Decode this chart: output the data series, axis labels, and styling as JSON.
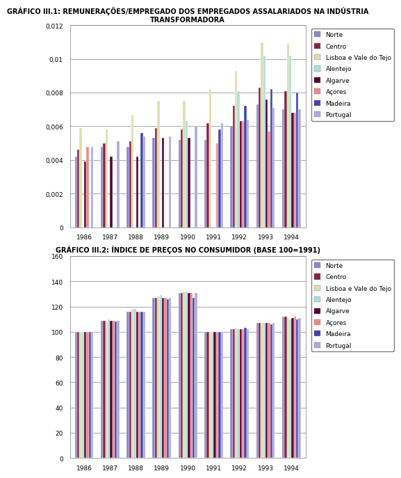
{
  "chart1": {
    "title": "GRÁFICO III.1: REMUNERAÇÕES/EMPREGADO DOS EMPREGADOS ASSALARIADOS NA INDÚSTRIA\nTRANSFORMADORA",
    "years": [
      1986,
      1987,
      1988,
      1989,
      1990,
      1991,
      1992,
      1993,
      1994
    ],
    "series": {
      "Norte": [
        0.0042,
        0.0048,
        0.0048,
        0.0053,
        0.0052,
        0.0052,
        0.006,
        0.0073,
        0.007
      ],
      "Centro": [
        0.0046,
        0.005,
        0.0051,
        0.0059,
        0.0058,
        0.0062,
        0.0072,
        0.0083,
        0.0081
      ],
      "Lisboa e Vale do Tejo": [
        0.0059,
        0.0058,
        0.0067,
        0.0075,
        0.0075,
        0.0082,
        0.0093,
        0.011,
        0.0109
      ],
      "Alentejo": [
        0.0,
        0.0,
        0.0,
        0.0,
        0.0063,
        0.0,
        0.0081,
        0.0102,
        0.0102
      ],
      "Algarve": [
        0.0039,
        0.0042,
        0.0042,
        0.0053,
        0.0053,
        0.0,
        0.0063,
        0.0076,
        0.0068
      ],
      "Açores": [
        0.0048,
        0.0,
        0.0,
        0.0,
        0.0,
        0.005,
        0.0063,
        0.0057,
        0.0068
      ],
      "Madeira": [
        0.0,
        0.0,
        0.0056,
        0.0,
        0.0,
        0.0058,
        0.0072,
        0.0082,
        0.008
      ],
      "Portugal": [
        0.0048,
        0.0051,
        0.0054,
        0.0054,
        0.006,
        0.0062,
        0.0064,
        0.0071,
        0.007
      ]
    },
    "colors": {
      "Norte": "#8888cc",
      "Centro": "#882244",
      "Lisboa e Vale do Tejo": "#ddddaa",
      "Alentejo": "#aadddd",
      "Algarve": "#550033",
      "Açores": "#ee8888",
      "Madeira": "#4444aa",
      "Portugal": "#aaaadd"
    },
    "ylim": [
      0,
      0.012
    ],
    "yticks": [
      0,
      0.002,
      0.004,
      0.006,
      0.008,
      0.01,
      0.012
    ]
  },
  "chart2": {
    "title": "GRÁFICO III.2: ÍNDICE DE PREÇOS NO CONSUMIDOR (BASE 100=1991)",
    "years": [
      1986,
      1987,
      1988,
      1989,
      1990,
      1991,
      1992,
      1993,
      1994
    ],
    "series": {
      "Norte": [
        100,
        109,
        116,
        127,
        131,
        100,
        102,
        107,
        112
      ],
      "Centro": [
        100,
        109,
        116,
        127,
        131,
        100,
        102,
        107,
        112
      ],
      "Lisboa e Vale do Tejo": [
        100,
        109,
        118,
        128,
        132,
        100,
        103,
        107,
        111
      ],
      "Alentejo": [
        100,
        110,
        118,
        129,
        132,
        100,
        102,
        107,
        110
      ],
      "Algarve": [
        100,
        109,
        116,
        127,
        131,
        100,
        102,
        107,
        111
      ],
      "Açores": [
        100,
        109,
        116,
        127,
        131,
        100,
        102,
        107,
        112
      ],
      "Madeira": [
        100,
        108,
        116,
        126,
        127,
        100,
        103,
        106,
        110
      ],
      "Portugal": [
        100,
        109,
        116,
        127,
        131,
        100,
        102,
        107,
        111
      ]
    },
    "colors": {
      "Norte": "#8888cc",
      "Centro": "#882244",
      "Lisboa e Vale do Tejo": "#ddddaa",
      "Alentejo": "#aadddd",
      "Algarve": "#550033",
      "Açores": "#ee8888",
      "Madeira": "#4444aa",
      "Portugal": "#aaaadd"
    },
    "ylim": [
      0,
      160
    ],
    "yticks": [
      0,
      20,
      40,
      60,
      80,
      100,
      120,
      140,
      160
    ]
  },
  "legend_labels": [
    "Norte",
    "Centro",
    "Lisboa e Vale do Tejo",
    "Alentejo",
    "Algarve",
    "Açores",
    "Madeira",
    "Portugal"
  ],
  "title_fontsize": 7,
  "tick_fontsize": 6.5,
  "legend_fontsize": 6.5
}
